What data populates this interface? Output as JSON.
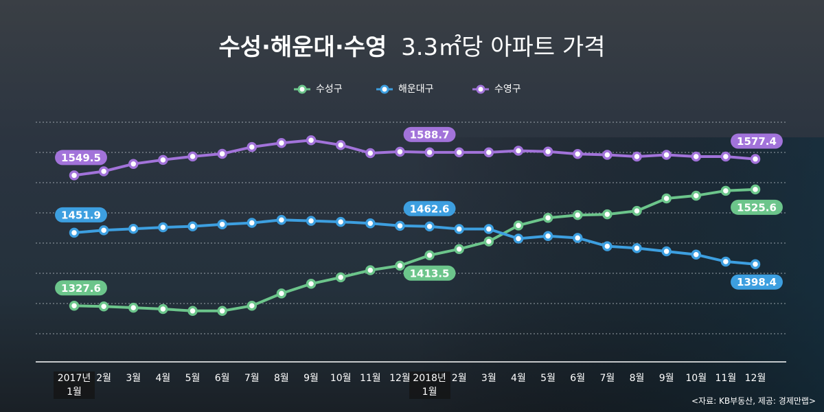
{
  "chart_data": {
    "type": "line",
    "title": "수성·해운대·수영",
    "subtitle": "3.3㎡당 아파트 가격",
    "source": "<자료: KB부동산, 제공: 경제만랩>",
    "categories": [
      "2017년\n1월",
      "2월",
      "3월",
      "4월",
      "5월",
      "6월",
      "7월",
      "8월",
      "9월",
      "10월",
      "11월",
      "12월",
      "2018년\n1월",
      "2월",
      "3월",
      "4월",
      "5월",
      "6월",
      "7월",
      "8월",
      "9월",
      "10월",
      "11월",
      "12월"
    ],
    "ylim": [
      1280,
      1640
    ],
    "series": [
      {
        "name": "수성구",
        "color": "#6cc58b",
        "values": [
          1327.6,
          1326.5,
          1324.3,
          1322.1,
          1318.8,
          1318.8,
          1327.6,
          1348.5,
          1365.0,
          1376.0,
          1388.1,
          1395.8,
          1413.5,
          1424.1,
          1437.1,
          1464.3,
          1477.3,
          1482.0,
          1483.2,
          1489.1,
          1510.3,
          1515.0,
          1523.3,
          1525.6
        ],
        "value_labels": [
          "1327.6",
          null,
          null,
          null,
          null,
          null,
          null,
          null,
          null,
          null,
          null,
          null,
          "1413.5",
          null,
          null,
          null,
          null,
          null,
          null,
          null,
          null,
          null,
          null,
          "1525.6"
        ]
      },
      {
        "name": "해운대구",
        "color": "#3d9fe0",
        "values": [
          1451.9,
          1456.1,
          1458.6,
          1461.1,
          1462.8,
          1466.2,
          1468.7,
          1473.7,
          1472.1,
          1470.4,
          1467.9,
          1463.7,
          1462.6,
          1458.2,
          1458.2,
          1441.9,
          1446.3,
          1443.0,
          1428.9,
          1425.6,
          1420.2,
          1414.7,
          1402.8,
          1398.4
        ],
        "value_labels": [
          "1451.9",
          null,
          null,
          null,
          null,
          null,
          null,
          null,
          null,
          null,
          null,
          null,
          "1462.6",
          null,
          null,
          null,
          null,
          null,
          null,
          null,
          null,
          null,
          null,
          "1398.4"
        ]
      },
      {
        "name": "수영구",
        "color": "#a273da",
        "values": [
          1549.5,
          1556.4,
          1569.0,
          1575.9,
          1581.7,
          1586.3,
          1597.8,
          1604.7,
          1609.3,
          1601.2,
          1587.4,
          1589.8,
          1588.7,
          1588.7,
          1588.7,
          1591.5,
          1590.1,
          1585.9,
          1584.5,
          1581.6,
          1584.5,
          1581.6,
          1581.6,
          1577.4
        ],
        "value_labels": [
          "1549.5",
          null,
          null,
          null,
          null,
          null,
          null,
          null,
          null,
          null,
          null,
          null,
          "1588.7",
          null,
          null,
          null,
          null,
          null,
          null,
          null,
          null,
          null,
          null,
          "1577.4"
        ]
      }
    ]
  }
}
